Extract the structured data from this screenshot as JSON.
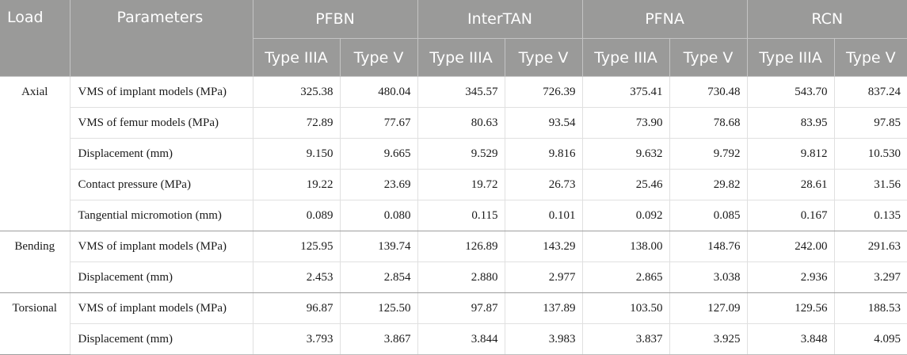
{
  "header": {
    "load": "Load",
    "parameters": "Parameters",
    "groups": [
      "PFBN",
      "InterTAN",
      "PFNA",
      "RCN"
    ],
    "subtypes": [
      "Type IIIA",
      "Type V",
      "Type IIIA",
      "Type V",
      "Type IIIA",
      "Type V",
      "Type IIIA",
      "Type V"
    ]
  },
  "sections": [
    {
      "load": "Axial",
      "rows": [
        {
          "param": "VMS of implant models (MPa)",
          "values": [
            "325.38",
            "480.04",
            "345.57",
            "726.39",
            "375.41",
            "730.48",
            "543.70",
            "837.24"
          ]
        },
        {
          "param": "VMS of femur models (MPa)",
          "values": [
            "72.89",
            "77.67",
            "80.63",
            "93.54",
            "73.90",
            "78.68",
            "83.95",
            "97.85"
          ]
        },
        {
          "param": "Displacement (mm)",
          "values": [
            "9.150",
            "9.665",
            "9.529",
            "9.816",
            "9.632",
            "9.792",
            "9.812",
            "10.530"
          ]
        },
        {
          "param": "Contact pressure (MPa)",
          "values": [
            "19.22",
            "23.69",
            "19.72",
            "26.73",
            "25.46",
            "29.82",
            "28.61",
            "31.56"
          ]
        },
        {
          "param": "Tangential micromotion (mm)",
          "values": [
            "0.089",
            "0.080",
            "0.115",
            "0.101",
            "0.092",
            "0.085",
            "0.167",
            "0.135"
          ]
        }
      ]
    },
    {
      "load": "Bending",
      "rows": [
        {
          "param": "VMS of implant models (MPa)",
          "values": [
            "125.95",
            "139.74",
            "126.89",
            "143.29",
            "138.00",
            "148.76",
            "242.00",
            "291.63"
          ]
        },
        {
          "param": "Displacement (mm)",
          "values": [
            "2.453",
            "2.854",
            "2.880",
            "2.977",
            "2.865",
            "3.038",
            "2.936",
            "3.297"
          ]
        }
      ]
    },
    {
      "load": "Torsional",
      "rows": [
        {
          "param": "VMS of implant models (MPa)",
          "values": [
            "96.87",
            "125.50",
            "97.87",
            "137.89",
            "103.50",
            "127.09",
            "129.56",
            "188.53"
          ]
        },
        {
          "param": "Displacement (mm)",
          "values": [
            "3.793",
            "3.867",
            "3.844",
            "3.983",
            "3.837",
            "3.925",
            "3.848",
            "4.095"
          ]
        }
      ]
    }
  ]
}
